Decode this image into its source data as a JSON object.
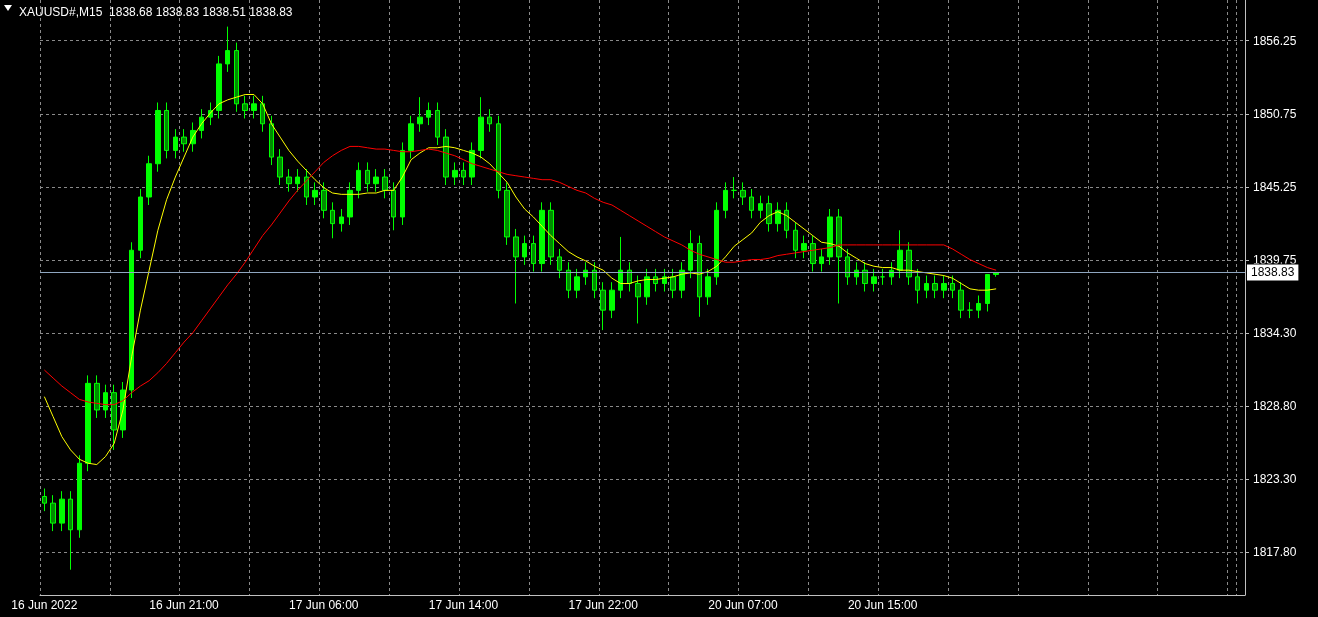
{
  "chart_data": {
    "type": "candlestick",
    "title": "XAUUSD#,M15  1838.68 1838.83 1838.51 1838.83",
    "categories": [
      "16 Jun 2022",
      null,
      null,
      null,
      null,
      null,
      null,
      null,
      null,
      null,
      null,
      null,
      null,
      null,
      null,
      null,
      "16 Jun 21:00",
      null,
      null,
      null,
      null,
      null,
      null,
      null,
      null,
      null,
      null,
      null,
      null,
      null,
      null,
      null,
      "17 Jun 06:00",
      null,
      null,
      null,
      null,
      null,
      null,
      null,
      null,
      null,
      null,
      null,
      null,
      null,
      null,
      null,
      "17 Jun 14:00",
      null,
      null,
      null,
      null,
      null,
      null,
      null,
      null,
      null,
      null,
      null,
      null,
      null,
      null,
      null,
      "17 Jun 22:00",
      null,
      null,
      null,
      null,
      null,
      null,
      null,
      null,
      null,
      null,
      null,
      null,
      null,
      null,
      null,
      "20 Jun 07:00",
      null,
      null,
      null,
      null,
      null,
      null,
      null,
      null,
      null,
      null,
      null,
      null,
      null,
      null,
      null,
      "20 Jun 15:00",
      null,
      null,
      null,
      null,
      null,
      null,
      null,
      null,
      null,
      null,
      null,
      null,
      null,
      null,
      null,
      null,
      null,
      null,
      null,
      null,
      null,
      null,
      null,
      null,
      null,
      null,
      null,
      null,
      null,
      null,
      null,
      null,
      null,
      null,
      null,
      null,
      null,
      null,
      null,
      null,
      null
    ],
    "series": [
      {
        "color": "#00ff00",
        "ohlc": [
          [
            1822.0,
            1822.6,
            1820.9,
            1821.5
          ],
          [
            1821.5,
            1822.1,
            1819.4,
            1820.0
          ],
          [
            1820.0,
            1822.4,
            1819.4,
            1821.8
          ],
          [
            1821.8,
            1822.4,
            1816.5,
            1819.5
          ],
          [
            1819.5,
            1825.1,
            1818.9,
            1824.5
          ],
          [
            1824.5,
            1831.1,
            1823.9,
            1830.5
          ],
          [
            1830.5,
            1831.1,
            1827.9,
            1828.5
          ],
          [
            1828.5,
            1830.4,
            1827.9,
            1829.8
          ],
          [
            1829.8,
            1830.4,
            1825.5,
            1827.0
          ],
          [
            1827.0,
            1830.6,
            1826.4,
            1830.0
          ],
          [
            1830.0,
            1841.1,
            1829.4,
            1840.5
          ],
          [
            1840.5,
            1845.1,
            1839.9,
            1844.5
          ],
          [
            1844.5,
            1847.6,
            1843.9,
            1847.0
          ],
          [
            1847.0,
            1851.6,
            1846.4,
            1851.0
          ],
          [
            1851.0,
            1851.6,
            1847.4,
            1848.0
          ],
          [
            1848.0,
            1849.6,
            1847.4,
            1849.0
          ],
          [
            1849.0,
            1849.6,
            1847.9,
            1848.5
          ],
          [
            1848.5,
            1850.1,
            1847.9,
            1849.5
          ],
          [
            1849.5,
            1851.1,
            1848.9,
            1850.5
          ],
          [
            1850.5,
            1851.6,
            1849.9,
            1851.0
          ],
          [
            1851.0,
            1855.1,
            1850.4,
            1854.5
          ],
          [
            1854.5,
            1857.3,
            1853.9,
            1855.5
          ],
          [
            1855.5,
            1856.1,
            1850.9,
            1851.5
          ],
          [
            1851.5,
            1852.1,
            1850.4,
            1851.0
          ],
          [
            1851.0,
            1852.1,
            1850.4,
            1851.5
          ],
          [
            1851.5,
            1852.1,
            1849.4,
            1850.0
          ],
          [
            1850.0,
            1850.6,
            1846.9,
            1847.5
          ],
          [
            1847.5,
            1848.1,
            1845.4,
            1846.0
          ],
          [
            1846.0,
            1846.6,
            1844.9,
            1845.5
          ],
          [
            1845.5,
            1846.6,
            1844.9,
            1846.0
          ],
          [
            1846.0,
            1846.6,
            1843.9,
            1844.5
          ],
          [
            1844.5,
            1845.6,
            1843.9,
            1845.0
          ],
          [
            1845.0,
            1845.6,
            1842.9,
            1843.5
          ],
          [
            1843.5,
            1844.1,
            1841.4,
            1842.5
          ],
          [
            1842.5,
            1843.6,
            1841.9,
            1843.0
          ],
          [
            1843.0,
            1845.6,
            1842.4,
            1845.0
          ],
          [
            1845.0,
            1847.1,
            1844.4,
            1846.5
          ],
          [
            1846.5,
            1847.1,
            1844.9,
            1845.5
          ],
          [
            1845.5,
            1846.6,
            1844.9,
            1846.0
          ],
          [
            1846.0,
            1846.6,
            1844.4,
            1845.0
          ],
          [
            1845.0,
            1845.6,
            1842.0,
            1843.0
          ],
          [
            1843.0,
            1848.6,
            1842.4,
            1848.0
          ],
          [
            1848.0,
            1850.6,
            1847.4,
            1850.0
          ],
          [
            1850.0,
            1852.0,
            1849.4,
            1850.5
          ],
          [
            1850.5,
            1851.6,
            1849.9,
            1851.0
          ],
          [
            1851.0,
            1851.6,
            1848.4,
            1849.0
          ],
          [
            1849.0,
            1849.6,
            1845.4,
            1846.0
          ],
          [
            1846.0,
            1847.1,
            1845.4,
            1846.5
          ],
          [
            1846.5,
            1847.1,
            1845.4,
            1846.0
          ],
          [
            1846.0,
            1848.6,
            1845.4,
            1848.0
          ],
          [
            1848.0,
            1852.0,
            1847.4,
            1850.5
          ],
          [
            1850.5,
            1851.1,
            1849.4,
            1850.0
          ],
          [
            1850.0,
            1850.6,
            1844.4,
            1845.0
          ],
          [
            1845.0,
            1845.6,
            1840.9,
            1841.5
          ],
          [
            1841.5,
            1842.1,
            1836.5,
            1840.0
          ],
          [
            1840.0,
            1841.6,
            1839.4,
            1841.0
          ],
          [
            1841.0,
            1841.6,
            1838.9,
            1839.5
          ],
          [
            1839.5,
            1844.1,
            1838.9,
            1843.5
          ],
          [
            1843.5,
            1844.1,
            1839.4,
            1840.0
          ],
          [
            1840.0,
            1840.6,
            1838.4,
            1839.0
          ],
          [
            1839.0,
            1839.6,
            1836.9,
            1837.5
          ],
          [
            1837.5,
            1839.1,
            1836.9,
            1838.5
          ],
          [
            1838.5,
            1839.6,
            1837.9,
            1839.0
          ],
          [
            1839.0,
            1839.6,
            1836.9,
            1837.5
          ],
          [
            1837.5,
            1838.1,
            1834.5,
            1836.0
          ],
          [
            1836.0,
            1838.1,
            1835.4,
            1837.5
          ],
          [
            1837.5,
            1841.5,
            1836.9,
            1839.0
          ],
          [
            1839.0,
            1839.6,
            1837.4,
            1838.0
          ],
          [
            1838.0,
            1838.6,
            1835.0,
            1837.0
          ],
          [
            1837.0,
            1839.1,
            1836.4,
            1838.5
          ],
          [
            1838.5,
            1839.1,
            1837.4,
            1838.0
          ],
          [
            1838.0,
            1839.1,
            1837.4,
            1838.5
          ],
          [
            1838.5,
            1839.1,
            1836.9,
            1837.5
          ],
          [
            1837.5,
            1839.6,
            1836.9,
            1839.0
          ],
          [
            1839.0,
            1842.0,
            1838.4,
            1841.0
          ],
          [
            1841.0,
            1841.6,
            1835.5,
            1837.0
          ],
          [
            1837.0,
            1839.1,
            1836.4,
            1838.5
          ],
          [
            1838.5,
            1844.1,
            1837.9,
            1843.5
          ],
          [
            1843.5,
            1845.6,
            1842.9,
            1845.0
          ],
          [
            1845.0,
            1846.0,
            1844.4,
            1845.0
          ],
          [
            1845.0,
            1845.6,
            1843.9,
            1844.5
          ],
          [
            1844.5,
            1845.1,
            1842.9,
            1843.5
          ],
          [
            1843.5,
            1844.6,
            1842.9,
            1844.0
          ],
          [
            1844.0,
            1844.6,
            1841.9,
            1842.5
          ],
          [
            1842.5,
            1844.1,
            1841.9,
            1843.5
          ],
          [
            1843.5,
            1844.1,
            1841.4,
            1842.0
          ],
          [
            1842.0,
            1842.6,
            1839.9,
            1840.5
          ],
          [
            1840.5,
            1841.6,
            1839.9,
            1841.0
          ],
          [
            1841.0,
            1841.6,
            1838.9,
            1839.5
          ],
          [
            1839.5,
            1840.6,
            1838.9,
            1840.0
          ],
          [
            1840.0,
            1843.6,
            1839.4,
            1843.0
          ],
          [
            1843.0,
            1843.6,
            1836.5,
            1840.0
          ],
          [
            1840.0,
            1840.6,
            1837.9,
            1838.5
          ],
          [
            1838.5,
            1839.6,
            1837.9,
            1839.0
          ],
          [
            1839.0,
            1839.6,
            1837.4,
            1838.0
          ],
          [
            1838.0,
            1839.1,
            1837.4,
            1838.5
          ],
          [
            1838.5,
            1839.1,
            1837.9,
            1838.5
          ],
          [
            1838.5,
            1839.6,
            1837.9,
            1839.0
          ],
          [
            1839.0,
            1842.0,
            1838.4,
            1840.5
          ],
          [
            1840.5,
            1841.1,
            1837.9,
            1838.5
          ],
          [
            1838.5,
            1839.1,
            1836.5,
            1837.5
          ],
          [
            1837.5,
            1838.6,
            1836.9,
            1838.0
          ],
          [
            1838.0,
            1838.6,
            1836.9,
            1837.5
          ],
          [
            1837.5,
            1838.6,
            1836.9,
            1838.0
          ],
          [
            1838.0,
            1838.6,
            1836.9,
            1837.5
          ],
          [
            1837.5,
            1838.1,
            1835.4,
            1836.0
          ],
          [
            1836.0,
            1836.6,
            1835.4,
            1836.0
          ],
          [
            1836.0,
            1837.1,
            1835.4,
            1836.5
          ],
          [
            1836.5,
            1838.7,
            1835.9,
            1838.68
          ],
          [
            1838.68,
            1838.83,
            1838.51,
            1838.83
          ],
          null,
          null,
          null,
          null,
          null,
          null,
          null,
          null,
          null,
          null,
          null,
          null,
          null,
          null,
          null,
          null,
          null,
          null,
          null,
          null,
          null,
          null,
          null,
          null,
          null,
          null,
          null,
          null
        ]
      },
      {
        "type": "line",
        "color": "#ffff00",
        "values": [
          1829.5,
          1828.0,
          1826.5,
          1825.5,
          1824.8,
          1824.5,
          1824.4,
          1825.0,
          1826.0,
          1828.5,
          1832.5,
          1836.0,
          1839.0,
          1842.0,
          1844.3,
          1846.0,
          1847.5,
          1849.0,
          1850.0,
          1850.8,
          1851.5,
          1851.8,
          1852.0,
          1852.2,
          1852.2,
          1851.5,
          1850.0,
          1849.0,
          1848.0,
          1847.2,
          1846.5,
          1845.8,
          1845.2,
          1844.8,
          1844.7,
          1844.7,
          1844.7,
          1844.8,
          1844.8,
          1845.0,
          1845.0,
          1846.0,
          1847.3,
          1847.8,
          1848.2,
          1848.2,
          1848.3,
          1848.2,
          1848.0,
          1847.8,
          1847.5,
          1847.0,
          1846.3,
          1845.6,
          1844.5,
          1843.6,
          1843.0,
          1842.3,
          1841.6,
          1841.0,
          1840.4,
          1840.0,
          1839.7,
          1839.3,
          1839.0,
          1838.4,
          1838.0,
          1838.0,
          1838.2,
          1838.3,
          1838.3,
          1838.4,
          1838.5,
          1838.7,
          1838.8,
          1838.7,
          1838.9,
          1839.3,
          1840.0,
          1840.8,
          1841.3,
          1841.8,
          1842.6,
          1843.1,
          1843.4,
          1843.1,
          1842.6,
          1842.1,
          1841.6,
          1841.1,
          1841.0,
          1840.8,
          1840.3,
          1839.9,
          1839.5,
          1839.3,
          1839.2,
          1839.2,
          1839.0,
          1839.0,
          1838.9,
          1838.8,
          1838.7,
          1838.6,
          1838.4,
          1838.0,
          1837.6,
          1837.5,
          1837.5,
          1837.6,
          null,
          null,
          null,
          null,
          null,
          null,
          null,
          null,
          null,
          null,
          null,
          null,
          null,
          null,
          null,
          null,
          null,
          null,
          null,
          null,
          null,
          null,
          null,
          null,
          null,
          null,
          null,
          null
        ]
      },
      {
        "type": "line",
        "color": "#ff0000",
        "values": [
          1831.5,
          1830.9,
          1830.3,
          1829.8,
          1829.3,
          1829.1,
          1829.0,
          1828.9,
          1828.9,
          1829.2,
          1829.8,
          1830.3,
          1830.7,
          1831.3,
          1832.0,
          1832.8,
          1833.6,
          1834.3,
          1835.2,
          1836.1,
          1837.0,
          1837.9,
          1838.7,
          1839.6,
          1840.6,
          1841.6,
          1842.4,
          1843.3,
          1844.2,
          1845.0,
          1845.7,
          1846.4,
          1847.1,
          1847.6,
          1848.0,
          1848.3,
          1848.3,
          1848.2,
          1848.1,
          1848.1,
          1848.0,
          1847.9,
          1847.9,
          1848.0,
          1848.1,
          1848.0,
          1847.8,
          1847.6,
          1847.3,
          1847.0,
          1846.8,
          1846.6,
          1846.4,
          1846.2,
          1846.1,
          1846.0,
          1845.9,
          1845.8,
          1845.8,
          1845.6,
          1845.3,
          1845.0,
          1844.8,
          1844.4,
          1844.1,
          1843.9,
          1843.5,
          1843.1,
          1842.7,
          1842.3,
          1841.9,
          1841.5,
          1841.2,
          1840.9,
          1840.5,
          1840.2,
          1840.0,
          1839.8,
          1839.6,
          1839.6,
          1839.7,
          1839.8,
          1839.8,
          1839.9,
          1840.1,
          1840.2,
          1840.3,
          1840.4,
          1840.5,
          1840.6,
          1840.7,
          1840.9,
          1840.9,
          1840.9,
          1840.9,
          1840.9,
          1840.9,
          1840.9,
          1840.9,
          1840.9,
          1840.9,
          1840.9,
          1840.9,
          1840.9,
          1840.6,
          1840.2,
          1839.8,
          1839.5,
          1839.2,
          1839.0,
          null,
          null,
          null,
          null,
          null,
          null,
          null,
          null,
          null,
          null,
          null,
          null,
          null,
          null,
          null,
          null,
          null,
          null,
          null,
          null,
          null,
          null,
          null,
          null,
          null,
          null,
          null,
          null
        ]
      }
    ],
    "ylim": [
      1814.6,
      1859.3
    ],
    "yticks": [
      {
        "value": 1817.8,
        "label": "1817.80"
      },
      {
        "value": 1823.3,
        "label": "1823.30"
      },
      {
        "value": 1828.8,
        "label": "1828.80"
      },
      {
        "value": 1834.3,
        "label": "1834.30"
      },
      {
        "value": 1839.75,
        "label": "1839.75"
      },
      {
        "value": 1845.25,
        "label": "1845.25"
      },
      {
        "value": 1850.75,
        "label": "1850.75"
      },
      {
        "value": 1856.25,
        "label": "1856.25"
      }
    ],
    "ref_lines": [
      {
        "axis": "y",
        "value": 1838.83,
        "label": "1838.83",
        "color": "#8fa6c0"
      }
    ],
    "grid": true
  }
}
